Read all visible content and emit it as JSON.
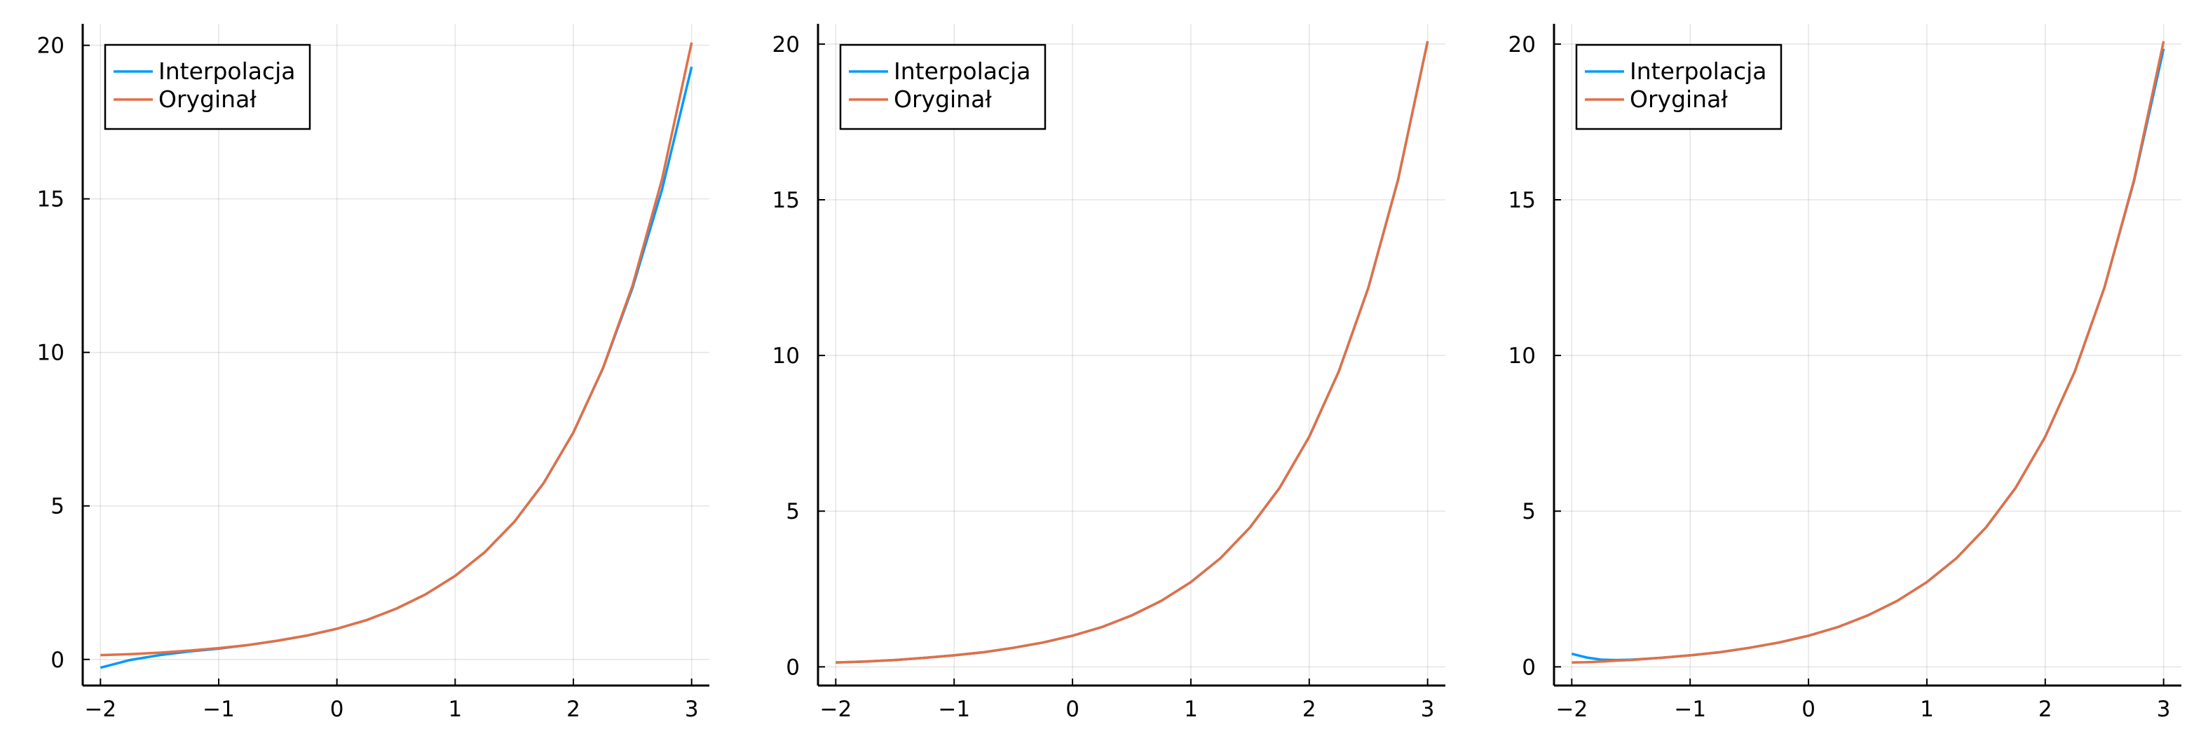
{
  "chart_data": [
    {
      "type": "line",
      "xlim": [
        -2.15,
        3.15
      ],
      "ylim": [
        -0.85,
        20.7
      ],
      "xticks": [
        -2,
        -1,
        0,
        1,
        2,
        3
      ],
      "xtick_labels": [
        "−2",
        "−1",
        "0",
        "1",
        "2",
        "3"
      ],
      "yticks": [
        0,
        5,
        10,
        15,
        20
      ],
      "ytick_labels": [
        "0",
        "5",
        "10",
        "15",
        "20"
      ],
      "grid": true,
      "legend_position": "top-left",
      "x": [
        -2.0,
        -1.75,
        -1.5,
        -1.25,
        -1.0,
        -0.75,
        -0.5,
        -0.25,
        0.0,
        0.25,
        0.5,
        0.75,
        1.0,
        1.25,
        1.5,
        1.75,
        2.0,
        2.25,
        2.5,
        2.75,
        3.0
      ],
      "series": [
        {
          "name": "Interpolacja",
          "color": "#009AFA",
          "values": [
            -0.27,
            -0.02,
            0.14,
            0.26,
            0.35,
            0.47,
            0.61,
            0.78,
            1.0,
            1.28,
            1.65,
            2.12,
            2.72,
            3.49,
            4.48,
            5.75,
            7.39,
            9.48,
            12.1,
            15.3,
            19.3
          ]
        },
        {
          "name": "Oryginał",
          "color": "#E26F46",
          "values": [
            0.14,
            0.17,
            0.22,
            0.29,
            0.37,
            0.47,
            0.61,
            0.78,
            1.0,
            1.28,
            1.65,
            2.12,
            2.72,
            3.49,
            4.48,
            5.75,
            7.39,
            9.49,
            12.18,
            15.64,
            20.09
          ]
        }
      ]
    },
    {
      "type": "line",
      "xlim": [
        -2.15,
        3.15
      ],
      "ylim": [
        -0.6,
        20.65
      ],
      "xticks": [
        -2,
        -1,
        0,
        1,
        2,
        3
      ],
      "xtick_labels": [
        "−2",
        "−1",
        "0",
        "1",
        "2",
        "3"
      ],
      "yticks": [
        0,
        5,
        10,
        15,
        20
      ],
      "ytick_labels": [
        "0",
        "5",
        "10",
        "15",
        "20"
      ],
      "grid": true,
      "legend_position": "top-left",
      "x": [
        -2.0,
        -1.75,
        -1.5,
        -1.25,
        -1.0,
        -0.75,
        -0.5,
        -0.25,
        0.0,
        0.25,
        0.5,
        0.75,
        1.0,
        1.25,
        1.5,
        1.75,
        2.0,
        2.25,
        2.5,
        2.75,
        3.0
      ],
      "series": [
        {
          "name": "Interpolacja",
          "color": "#009AFA",
          "values": [
            0.14,
            0.17,
            0.22,
            0.29,
            0.37,
            0.47,
            0.61,
            0.78,
            1.0,
            1.28,
            1.65,
            2.12,
            2.72,
            3.49,
            4.48,
            5.75,
            7.39,
            9.49,
            12.18,
            15.64,
            20.09
          ]
        },
        {
          "name": "Oryginał",
          "color": "#E26F46",
          "values": [
            0.14,
            0.17,
            0.22,
            0.29,
            0.37,
            0.47,
            0.61,
            0.78,
            1.0,
            1.28,
            1.65,
            2.12,
            2.72,
            3.49,
            4.48,
            5.75,
            7.39,
            9.49,
            12.18,
            15.64,
            20.09
          ]
        }
      ]
    },
    {
      "type": "line",
      "xlim": [
        -2.15,
        3.15
      ],
      "ylim": [
        -0.6,
        20.65
      ],
      "xticks": [
        -2,
        -1,
        0,
        1,
        2,
        3
      ],
      "xtick_labels": [
        "−2",
        "−1",
        "0",
        "1",
        "2",
        "3"
      ],
      "yticks": [
        0,
        5,
        10,
        15,
        20
      ],
      "ytick_labels": [
        "0",
        "5",
        "10",
        "15",
        "20"
      ],
      "grid": true,
      "legend_position": "top-left",
      "x": [
        -2.0,
        -1.875,
        -1.75,
        -1.625,
        -1.5,
        -1.25,
        -1.0,
        -0.75,
        -0.5,
        -0.25,
        0.0,
        0.25,
        0.5,
        0.75,
        1.0,
        1.25,
        1.5,
        1.75,
        2.0,
        2.25,
        2.5,
        2.75,
        3.0
      ],
      "series": [
        {
          "name": "Interpolacja",
          "color": "#009AFA",
          "values": [
            0.42,
            0.3,
            0.23,
            0.22,
            0.23,
            0.29,
            0.37,
            0.47,
            0.61,
            0.78,
            1.0,
            1.28,
            1.65,
            2.12,
            2.72,
            3.49,
            4.48,
            5.75,
            7.39,
            9.49,
            12.18,
            15.6,
            19.85
          ]
        },
        {
          "name": "Oryginał",
          "color": "#E26F46",
          "values": [
            0.14,
            0.15,
            0.17,
            0.2,
            0.22,
            0.29,
            0.37,
            0.47,
            0.61,
            0.78,
            1.0,
            1.28,
            1.65,
            2.12,
            2.72,
            3.49,
            4.48,
            5.75,
            7.39,
            9.49,
            12.18,
            15.64,
            20.09
          ]
        }
      ]
    }
  ]
}
